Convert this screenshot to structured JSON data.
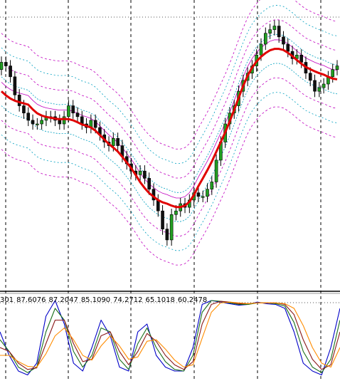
{
  "chart_data": [
    {
      "type": "candlestick",
      "panel": "price",
      "grid": true,
      "overlays": [
        {
          "kind": "moving_average",
          "color": "#e00000"
        },
        {
          "kind": "envelope_bands",
          "colors": [
            "#c000c0",
            "#00a0c0"
          ]
        }
      ],
      "close": [
        112,
        111,
        108,
        103,
        100,
        98,
        96,
        95,
        95,
        96,
        97,
        97,
        96,
        95,
        97,
        100,
        98,
        97,
        95,
        94,
        96,
        94,
        92,
        90,
        89,
        91,
        89,
        86,
        84,
        82,
        81,
        82,
        80,
        77,
        74,
        71,
        66,
        63,
        70,
        71,
        73,
        72,
        74,
        76,
        75,
        75,
        77,
        79,
        85,
        90,
        95,
        98,
        100,
        104,
        107,
        109,
        111,
        114,
        117,
        120,
        121,
        122,
        119,
        117,
        115,
        113,
        114,
        112,
        109,
        107,
        104,
        105,
        106,
        108,
        110,
        111
      ],
      "open": [
        110,
        112,
        111,
        108,
        103,
        100,
        98,
        96,
        95,
        95,
        96,
        97,
        97,
        96,
        95,
        97,
        100,
        98,
        97,
        95,
        94,
        96,
        94,
        92,
        90,
        89,
        91,
        89,
        86,
        84,
        82,
        81,
        82,
        80,
        77,
        74,
        71,
        66,
        63,
        70,
        71,
        73,
        72,
        74,
        76,
        75,
        75,
        77,
        79,
        85,
        90,
        95,
        98,
        100,
        104,
        107,
        109,
        111,
        114,
        117,
        120,
        121,
        122,
        119,
        117,
        115,
        113,
        114,
        112,
        109,
        107,
        104,
        105,
        106,
        108,
        110
      ]
    },
    {
      "type": "line",
      "panel": "oscillator",
      "grid": true,
      "value_labels": [
        "301",
        "87.6076",
        "87.2047",
        "85.1090",
        "74.2712",
        "65.1018",
        "60.2478"
      ],
      "series": [
        {
          "color": "#0000c8",
          "values": [
            60,
            30,
            10,
            5,
            20,
            80,
            100,
            70,
            20,
            10,
            40,
            75,
            55,
            15,
            10,
            60,
            70,
            30,
            15,
            10,
            10,
            40,
            95,
            100,
            98,
            96,
            94,
            95,
            98,
            96,
            95,
            90,
            60,
            20,
            10,
            5,
            40,
            90
          ]
        },
        {
          "color": "#1a6f1a",
          "values": [
            50,
            35,
            15,
            8,
            15,
            60,
            90,
            75,
            35,
            15,
            30,
            65,
            60,
            25,
            12,
            45,
            65,
            40,
            22,
            12,
            10,
            30,
            85,
            100,
            99,
            97,
            95,
            95,
            97,
            97,
            96,
            93,
            72,
            35,
            15,
            8,
            25,
            75
          ]
        },
        {
          "color": "#8a1a1a",
          "values": [
            40,
            35,
            20,
            12,
            14,
            45,
            75,
            75,
            45,
            22,
            25,
            55,
            60,
            35,
            18,
            35,
            58,
            48,
            30,
            18,
            12,
            22,
            70,
            95,
            99,
            98,
            96,
            96,
            97,
            97,
            97,
            95,
            82,
            50,
            25,
            12,
            18,
            60
          ]
        },
        {
          "color": "#ff8c00",
          "values": [
            30,
            30,
            22,
            16,
            15,
            32,
            55,
            65,
            50,
            30,
            24,
            42,
            55,
            42,
            25,
            28,
            48,
            50,
            38,
            24,
            15,
            18,
            52,
            85,
            97,
            98,
            97,
            96,
            97,
            97,
            97,
            96,
            90,
            68,
            40,
            20,
            15,
            40
          ]
        }
      ]
    }
  ]
}
